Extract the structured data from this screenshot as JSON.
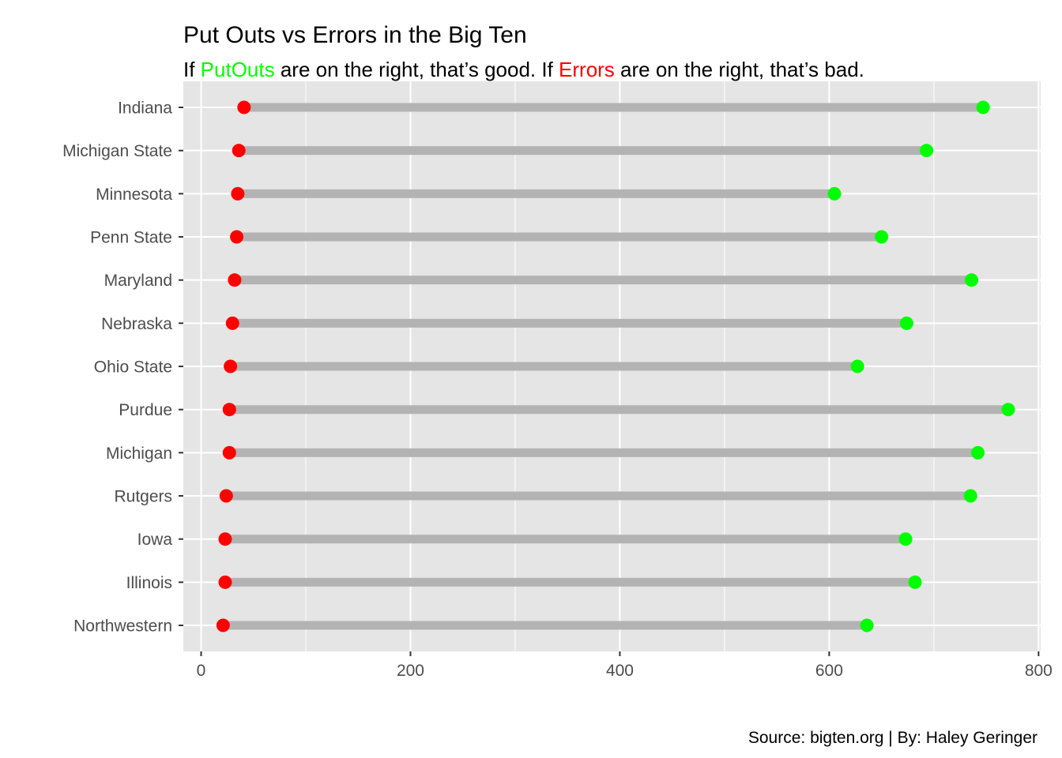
{
  "chart_data": {
    "type": "dumbbell",
    "title": "Put Outs vs Errors in the Big Ten",
    "subtitle": {
      "parts": [
        {
          "text": "If ",
          "color": "#000000"
        },
        {
          "text": "PutOuts",
          "color": "#00ff00"
        },
        {
          "text": " are on the right, that’s good. If ",
          "color": "#000000"
        },
        {
          "text": "Errors",
          "color": "#ff0000"
        },
        {
          "text": " are on the right, that’s bad.",
          "color": "#000000"
        }
      ]
    },
    "caption": "Source: bigten.org | By: Haley Geringer",
    "xlabel": "",
    "ylabel": "",
    "xlim": [
      -17,
      802
    ],
    "x_ticks": [
      0,
      200,
      400,
      600,
      800
    ],
    "x_minor_ticks": [
      100,
      300,
      500,
      700
    ],
    "grid": true,
    "colors": {
      "panel_background": "#e5e5e5",
      "grid": "#ffffff",
      "segment": "#b3b3b3",
      "errors": "#ff0000",
      "putouts": "#00ff00",
      "tick_text": "#4d4d4d",
      "tick_mark": "#333333"
    },
    "series": [
      {
        "name": "Errors",
        "color": "#ff0000"
      },
      {
        "name": "PutOuts",
        "color": "#00ff00"
      }
    ],
    "categories": [
      "Indiana",
      "Michigan State",
      "Minnesota",
      "Penn State",
      "Maryland",
      "Nebraska",
      "Ohio State",
      "Purdue",
      "Michigan",
      "Rutgers",
      "Iowa",
      "Illinois",
      "Northwestern"
    ],
    "errors": [
      41,
      36,
      35,
      34,
      32,
      30,
      28,
      27,
      27,
      24,
      23,
      23,
      21
    ],
    "putouts": [
      747,
      693,
      605,
      650,
      736,
      674,
      627,
      771,
      742,
      735,
      673,
      682,
      636
    ]
  }
}
